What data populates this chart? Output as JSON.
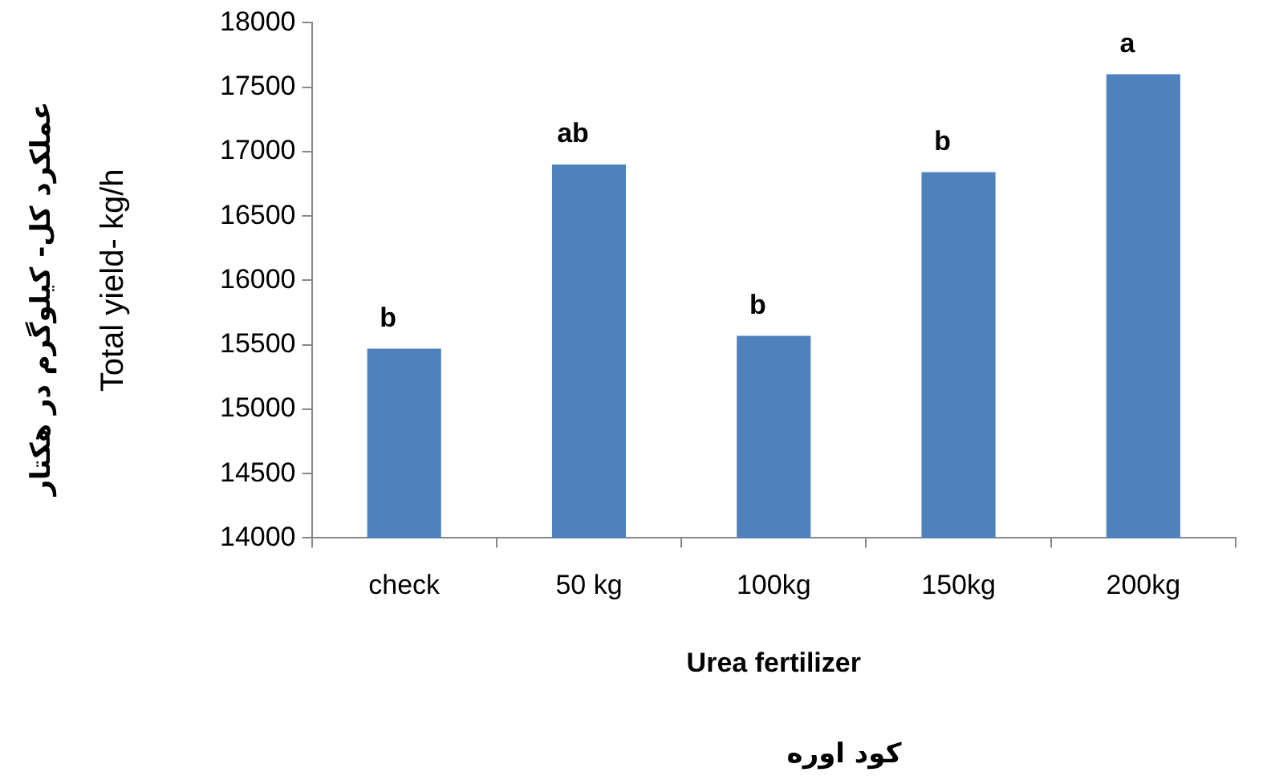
{
  "chart_data": {
    "type": "bar",
    "xlabel": "Urea fertilizer",
    "ylabel": "Total yield- kg/h",
    "categories": [
      "check",
      "50 kg",
      "100kg",
      "150kg",
      "200kg"
    ],
    "values": [
      15470,
      16900,
      15570,
      16840,
      17600
    ],
    "color": "#4f81bd",
    "ylim": [
      14000,
      18000
    ],
    "yticks": [
      14000,
      14500,
      15000,
      15500,
      16000,
      16500,
      17000,
      17500,
      18000
    ],
    "grid": false,
    "legend": false,
    "annotations": [
      {
        "text": "b",
        "x": "check",
        "y": 15470
      },
      {
        "text": "ab",
        "x": "50 kg",
        "y": 16900
      },
      {
        "text": "b",
        "x": "100kg",
        "y": 15570
      },
      {
        "text": "b",
        "x": "150kg",
        "y": 16840
      },
      {
        "text": "a",
        "x": "200kg",
        "y": 17600
      },
      "عملکرد کل- کیلوگرم در هکتار",
      "کود اوره"
    ]
  }
}
